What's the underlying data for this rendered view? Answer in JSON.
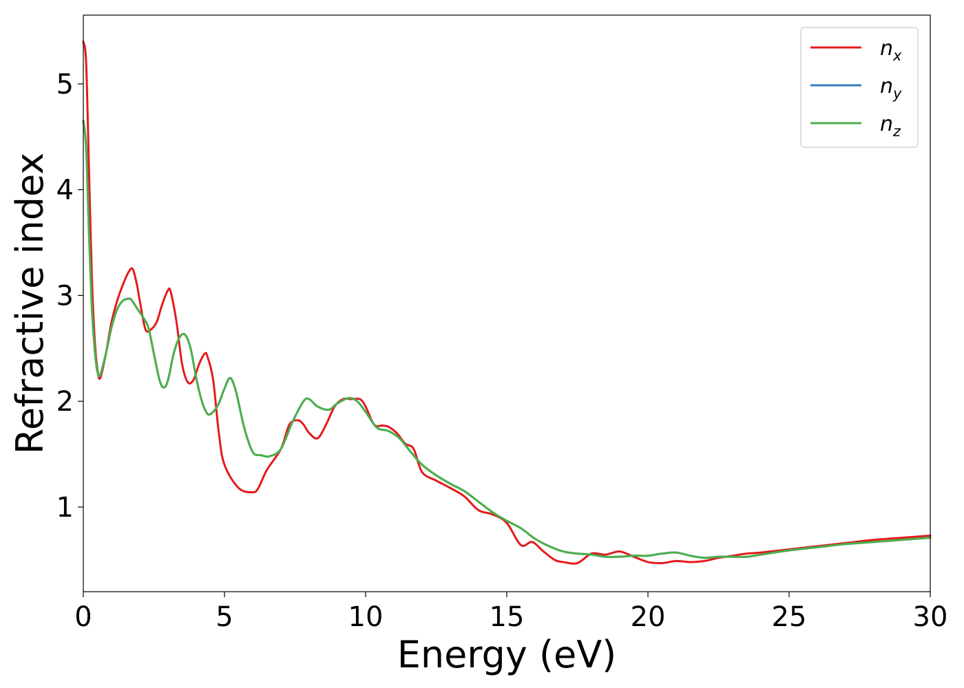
{
  "chart_data": {
    "type": "line",
    "xlabel": "Energy (eV)",
    "ylabel": "Refractive index",
    "xlim": [
      0,
      30
    ],
    "ylim": [
      0.2,
      5.65
    ],
    "xticks": [
      0,
      5,
      10,
      15,
      20,
      25,
      30
    ],
    "yticks": [
      1,
      2,
      3,
      4,
      5
    ],
    "grid": false,
    "legend_position": "top-right",
    "series": [
      {
        "name_base": "n",
        "name_sub": "x",
        "color": "#e41a1c",
        "x": [
          0,
          0.1,
          0.2,
          0.3,
          0.4,
          0.5,
          0.6,
          0.8,
          1.0,
          1.2,
          1.4,
          1.6,
          1.75,
          1.9,
          2.0,
          2.2,
          2.4,
          2.6,
          2.8,
          3.0,
          3.1,
          3.3,
          3.5,
          3.7,
          3.9,
          4.1,
          4.3,
          4.4,
          4.6,
          4.8,
          5.0,
          5.5,
          6.0,
          6.2,
          6.5,
          7.0,
          7.3,
          7.6,
          7.8,
          8.0,
          8.3,
          8.6,
          8.9,
          9.2,
          9.5,
          9.8,
          10.0,
          10.3,
          10.6,
          10.8,
          11.1,
          11.4,
          11.7,
          12.0,
          12.5,
          13.0,
          13.5,
          14.0,
          14.5,
          15.0,
          15.5,
          15.9,
          16.3,
          16.7,
          17.0,
          17.5,
          18.0,
          18.5,
          19.0,
          19.5,
          20.0,
          20.5,
          21.0,
          21.5,
          22.0,
          22.5,
          23.0,
          23.5,
          24.0,
          25.0,
          26.0,
          27.0,
          28.0,
          29.0,
          30.0
        ],
        "values": [
          5.4,
          5.2,
          4.2,
          3.2,
          2.6,
          2.3,
          2.22,
          2.45,
          2.75,
          2.95,
          3.1,
          3.22,
          3.25,
          3.1,
          2.95,
          2.68,
          2.68,
          2.75,
          2.92,
          3.05,
          3.03,
          2.75,
          2.35,
          2.18,
          2.2,
          2.35,
          2.45,
          2.42,
          2.2,
          1.7,
          1.4,
          1.18,
          1.14,
          1.18,
          1.35,
          1.55,
          1.78,
          1.82,
          1.78,
          1.7,
          1.65,
          1.78,
          1.95,
          2.02,
          2.02,
          2.02,
          1.95,
          1.78,
          1.77,
          1.76,
          1.7,
          1.6,
          1.55,
          1.33,
          1.25,
          1.18,
          1.1,
          0.97,
          0.93,
          0.85,
          0.64,
          0.67,
          0.58,
          0.5,
          0.48,
          0.47,
          0.56,
          0.55,
          0.58,
          0.53,
          0.48,
          0.47,
          0.49,
          0.48,
          0.49,
          0.52,
          0.54,
          0.56,
          0.57,
          0.6,
          0.63,
          0.66,
          0.69,
          0.71,
          0.73
        ]
      },
      {
        "name_base": "n",
        "name_sub": "y",
        "color": "#377eb8",
        "x": [
          0,
          0.1,
          0.2,
          0.3,
          0.4,
          0.5,
          0.6,
          0.8,
          1.0,
          1.2,
          1.4,
          1.6,
          1.7,
          1.9,
          2.1,
          2.3,
          2.5,
          2.7,
          2.85,
          3.0,
          3.2,
          3.4,
          3.6,
          3.8,
          4.0,
          4.2,
          4.4,
          4.6,
          4.8,
          5.0,
          5.2,
          5.4,
          5.7,
          6.0,
          6.3,
          6.6,
          7.0,
          7.4,
          7.8,
          8.0,
          8.3,
          8.7,
          9.0,
          9.4,
          9.7,
          10.0,
          10.4,
          10.8,
          11.2,
          11.6,
          12.0,
          12.5,
          13.0,
          13.5,
          14.0,
          14.5,
          15.0,
          15.5,
          16.0,
          16.5,
          17.0,
          17.5,
          18.0,
          18.5,
          19.0,
          19.5,
          20.0,
          20.5,
          21.0,
          21.5,
          22.0,
          22.5,
          23.0,
          23.5,
          24.0,
          25.0,
          26.0,
          27.0,
          28.0,
          29.0,
          30.0
        ],
        "values": [
          4.65,
          4.4,
          3.6,
          2.9,
          2.5,
          2.28,
          2.25,
          2.45,
          2.7,
          2.87,
          2.95,
          2.97,
          2.96,
          2.88,
          2.8,
          2.7,
          2.45,
          2.2,
          2.13,
          2.2,
          2.45,
          2.6,
          2.63,
          2.5,
          2.22,
          2.0,
          1.88,
          1.9,
          1.98,
          2.12,
          2.22,
          2.1,
          1.75,
          1.52,
          1.49,
          1.48,
          1.55,
          1.8,
          2.0,
          2.02,
          1.95,
          1.92,
          1.98,
          2.03,
          2.0,
          1.9,
          1.75,
          1.72,
          1.65,
          1.52,
          1.4,
          1.3,
          1.22,
          1.15,
          1.05,
          0.95,
          0.87,
          0.8,
          0.7,
          0.63,
          0.58,
          0.56,
          0.55,
          0.53,
          0.53,
          0.54,
          0.54,
          0.56,
          0.57,
          0.54,
          0.52,
          0.53,
          0.53,
          0.53,
          0.55,
          0.59,
          0.62,
          0.65,
          0.67,
          0.69,
          0.71
        ]
      },
      {
        "name_base": "n",
        "name_sub": "z",
        "color": "#4daf4a",
        "x": [
          0,
          0.1,
          0.2,
          0.3,
          0.4,
          0.5,
          0.6,
          0.8,
          1.0,
          1.2,
          1.4,
          1.6,
          1.7,
          1.9,
          2.1,
          2.3,
          2.5,
          2.7,
          2.85,
          3.0,
          3.2,
          3.4,
          3.6,
          3.8,
          4.0,
          4.2,
          4.4,
          4.6,
          4.8,
          5.0,
          5.2,
          5.4,
          5.7,
          6.0,
          6.3,
          6.6,
          7.0,
          7.4,
          7.8,
          8.0,
          8.3,
          8.7,
          9.0,
          9.4,
          9.7,
          10.0,
          10.4,
          10.8,
          11.2,
          11.6,
          12.0,
          12.5,
          13.0,
          13.5,
          14.0,
          14.5,
          15.0,
          15.5,
          16.0,
          16.5,
          17.0,
          17.5,
          18.0,
          18.5,
          19.0,
          19.5,
          20.0,
          20.5,
          21.0,
          21.5,
          22.0,
          22.5,
          23.0,
          23.5,
          24.0,
          25.0,
          26.0,
          27.0,
          28.0,
          29.0,
          30.0
        ],
        "values": [
          4.65,
          4.4,
          3.6,
          2.9,
          2.5,
          2.28,
          2.25,
          2.45,
          2.7,
          2.87,
          2.95,
          2.97,
          2.96,
          2.88,
          2.8,
          2.7,
          2.45,
          2.2,
          2.13,
          2.2,
          2.45,
          2.6,
          2.63,
          2.5,
          2.22,
          2.0,
          1.88,
          1.9,
          1.98,
          2.12,
          2.22,
          2.1,
          1.75,
          1.52,
          1.49,
          1.48,
          1.55,
          1.8,
          2.0,
          2.02,
          1.95,
          1.92,
          1.98,
          2.03,
          2.0,
          1.9,
          1.75,
          1.72,
          1.65,
          1.52,
          1.4,
          1.3,
          1.22,
          1.15,
          1.05,
          0.95,
          0.87,
          0.8,
          0.7,
          0.63,
          0.58,
          0.56,
          0.55,
          0.53,
          0.53,
          0.54,
          0.54,
          0.56,
          0.57,
          0.54,
          0.52,
          0.53,
          0.53,
          0.53,
          0.55,
          0.59,
          0.62,
          0.65,
          0.67,
          0.69,
          0.71
        ]
      }
    ]
  }
}
